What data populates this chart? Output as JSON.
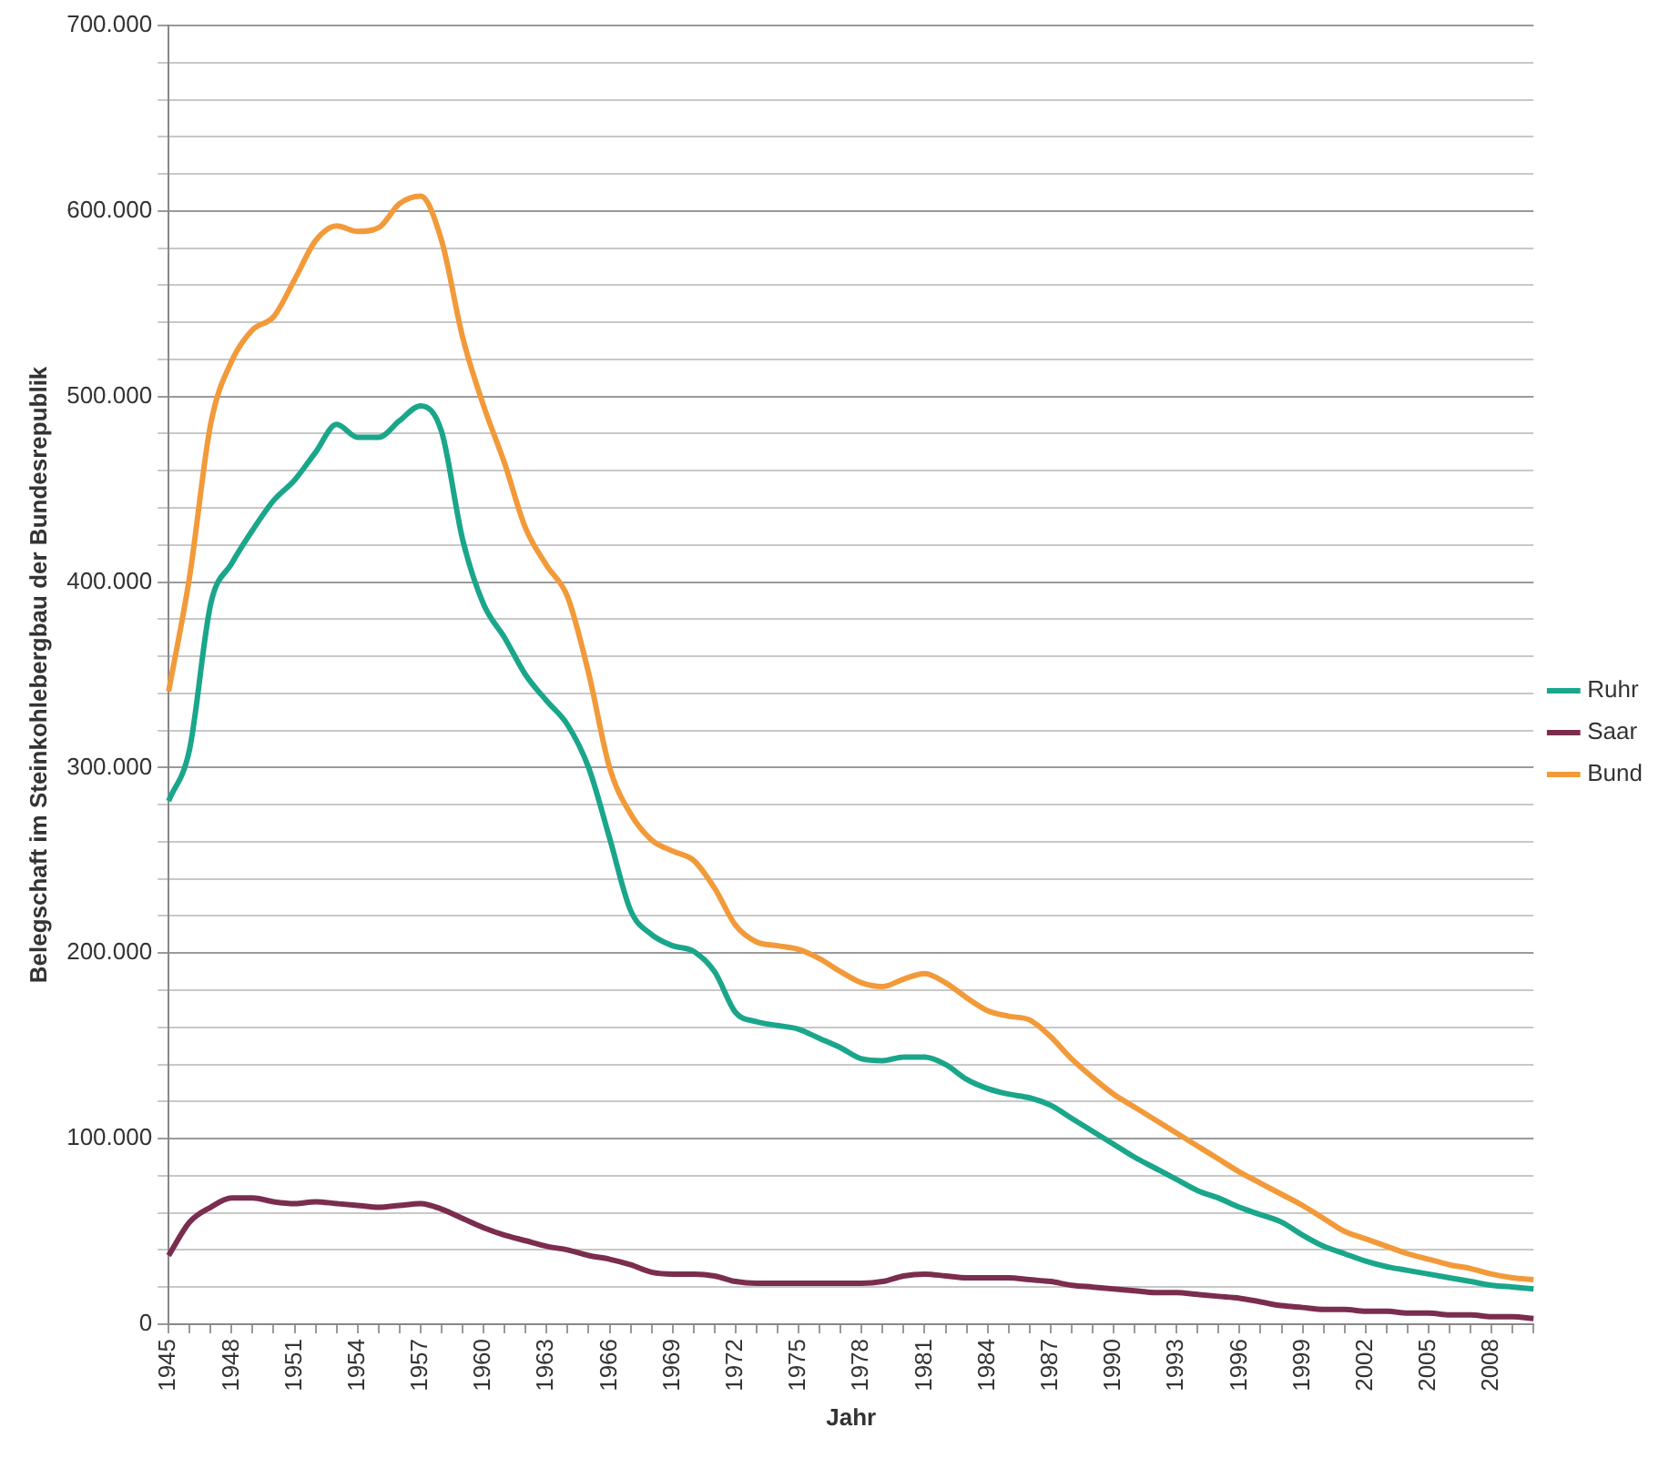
{
  "chart_data": {
    "type": "line",
    "xlabel": "Jahr",
    "ylabel": "Belegschaft im Steinkohlebergbau der Bundesrepublik",
    "categories": [
      "1945",
      null,
      null,
      "1948",
      null,
      null,
      "1951",
      null,
      null,
      "1954",
      null,
      null,
      "1957",
      null,
      null,
      "1960",
      null,
      null,
      "1963",
      null,
      null,
      "1966",
      null,
      null,
      "1969",
      null,
      null,
      "1972",
      null,
      null,
      "1975",
      null,
      null,
      "1978",
      null,
      null,
      "1981",
      null,
      null,
      "1984",
      null,
      null,
      "1987",
      null,
      null,
      "1990",
      null,
      null,
      "1993",
      null,
      null,
      "1996",
      null,
      null,
      "1999",
      null,
      null,
      "2002",
      null,
      null,
      "2005",
      null,
      null,
      "2008",
      null,
      null
    ],
    "series": [
      {
        "name": "Ruhr",
        "color": "#1aa68a",
        "values": [
          282000,
          310000,
          388000,
          410000,
          428000,
          444000,
          455000,
          470000,
          485000,
          478000,
          478000,
          487000,
          495000,
          481000,
          423000,
          388000,
          370000,
          350000,
          336000,
          323000,
          300000,
          262000,
          223000,
          210000,
          204000,
          201000,
          190000,
          168000,
          163000,
          161000,
          159000,
          154000,
          149000,
          143000,
          142000,
          144000,
          144000,
          140000,
          132000,
          127000,
          124000,
          122000,
          118000,
          111000,
          104000,
          97000,
          90000,
          84000,
          78000,
          72000,
          68000,
          63000,
          59000,
          55000,
          48000,
          42000,
          38000,
          34000,
          31000,
          29000,
          27000,
          25000,
          23000,
          21000,
          20000,
          19000
        ]
      },
      {
        "name": "Saar",
        "color": "#7b2d4f",
        "values": [
          37000,
          55000,
          63000,
          68000,
          68000,
          66000,
          65000,
          66000,
          65000,
          64000,
          63000,
          64000,
          65000,
          62000,
          57000,
          52000,
          48000,
          45000,
          42000,
          40000,
          37000,
          35000,
          32000,
          28000,
          27000,
          27000,
          26000,
          23000,
          22000,
          22000,
          22000,
          22000,
          22000,
          22000,
          23000,
          26000,
          27000,
          26000,
          25000,
          25000,
          25000,
          24000,
          23000,
          21000,
          20000,
          19000,
          18000,
          17000,
          17000,
          16000,
          15000,
          14000,
          12000,
          10000,
          9000,
          8000,
          8000,
          7000,
          7000,
          6000,
          6000,
          5000,
          5000,
          4000,
          4000,
          3000
        ]
      },
      {
        "name": "Bund",
        "color": "#f29a3a",
        "values": [
          341000,
          403000,
          485000,
          519000,
          536000,
          543000,
          563000,
          584000,
          592000,
          589000,
          591000,
          604000,
          608000,
          584000,
          532000,
          495000,
          464000,
          429000,
          409000,
          392000,
          351000,
          300000,
          275000,
          261000,
          255000,
          250000,
          235000,
          215000,
          206000,
          204000,
          202000,
          197000,
          190000,
          184000,
          182000,
          186000,
          189000,
          184000,
          176000,
          169000,
          166000,
          164000,
          155000,
          143000,
          133000,
          124000,
          117000,
          110000,
          103000,
          96000,
          89000,
          82000,
          76000,
          70000,
          64000,
          57000,
          50000,
          46000,
          42000,
          38000,
          35000,
          32000,
          30000,
          27000,
          25000,
          24000
        ]
      }
    ],
    "ylim": [
      0,
      700000
    ],
    "yticks": [
      {
        "value": 0,
        "label": "0"
      },
      {
        "value": 20000,
        "label": null
      },
      {
        "value": 40000,
        "label": null
      },
      {
        "value": 60000,
        "label": null
      },
      {
        "value": 80000,
        "label": null
      },
      {
        "value": 100000,
        "label": "100.000"
      },
      {
        "value": 120000,
        "label": null
      },
      {
        "value": 140000,
        "label": null
      },
      {
        "value": 160000,
        "label": null
      },
      {
        "value": 180000,
        "label": null
      },
      {
        "value": 200000,
        "label": "200.000"
      },
      {
        "value": 220000,
        "label": null
      },
      {
        "value": 240000,
        "label": null
      },
      {
        "value": 260000,
        "label": null
      },
      {
        "value": 280000,
        "label": null
      },
      {
        "value": 300000,
        "label": "300.000"
      },
      {
        "value": 320000,
        "label": null
      },
      {
        "value": 340000,
        "label": null
      },
      {
        "value": 360000,
        "label": null
      },
      {
        "value": 380000,
        "label": null
      },
      {
        "value": 400000,
        "label": "400.000"
      },
      {
        "value": 420000,
        "label": null
      },
      {
        "value": 440000,
        "label": null
      },
      {
        "value": 460000,
        "label": null
      },
      {
        "value": 480000,
        "label": null
      },
      {
        "value": 500000,
        "label": "500.000"
      },
      {
        "value": 520000,
        "label": null
      },
      {
        "value": 540000,
        "label": null
      },
      {
        "value": 560000,
        "label": null
      },
      {
        "value": 580000,
        "label": null
      },
      {
        "value": 600000,
        "label": "600.000"
      },
      {
        "value": 620000,
        "label": null
      },
      {
        "value": 640000,
        "label": null
      },
      {
        "value": 660000,
        "label": null
      },
      {
        "value": 680000,
        "label": null
      },
      {
        "value": 700000,
        "label": "700.000"
      }
    ],
    "grid": "y",
    "legend": "right",
    "marker": "none",
    "line_style": "solid"
  }
}
